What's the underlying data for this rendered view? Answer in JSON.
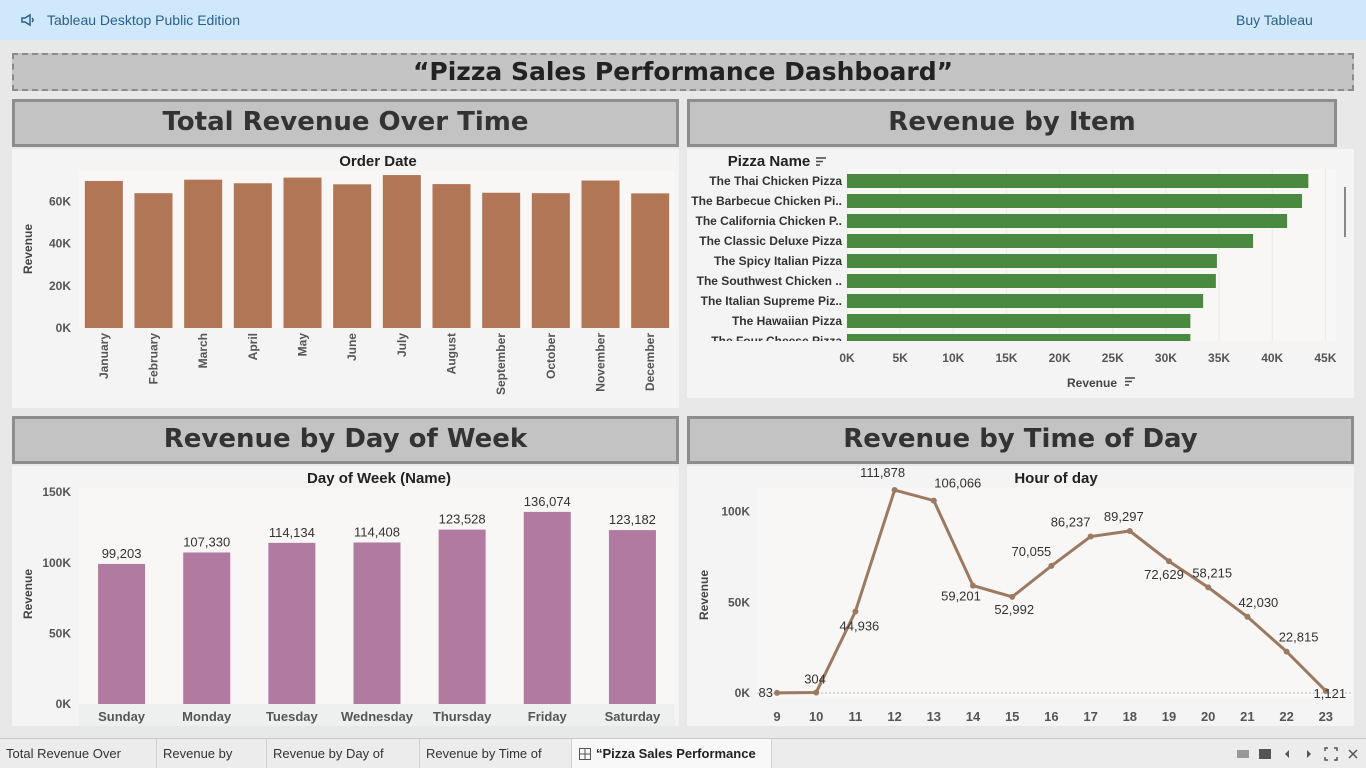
{
  "app": {
    "title": "Tableau Desktop Public Edition",
    "buy_label": "Buy Tableau"
  },
  "dashboard": {
    "title": "“Pizza Sales Performance Dashboard”",
    "panels": {
      "revenue_time": "Total Revenue Over Time",
      "revenue_item": "Revenue by Item",
      "revenue_dow": "Revenue by Day of Week",
      "revenue_tod": "Revenue by Time of Day"
    }
  },
  "tabs": [
    "Total Revenue Over Time",
    "Revenue by Item",
    "Revenue by Day of Week",
    "Revenue by Time of Day",
    "“Pizza Sales Performance D..."
  ],
  "colors": {
    "month_bar": "#b07656",
    "item_bar": "#4a8a40",
    "dow_bar": "#b07aa1",
    "tod_line": "#9c7a62"
  },
  "chart_data": [
    {
      "type": "bar",
      "title": "Order Date",
      "ylabel": "Revenue",
      "categories": [
        "January",
        "February",
        "March",
        "April",
        "May",
        "June",
        "July",
        "August",
        "September",
        "October",
        "November",
        "December"
      ],
      "values": [
        69800,
        64000,
        70400,
        68700,
        71400,
        68200,
        72600,
        68300,
        64200,
        64000,
        70000,
        63900
      ],
      "ylim": [
        0,
        75000
      ],
      "yticks": [
        0,
        20000,
        40000,
        60000
      ],
      "ytick_labels": [
        "0K",
        "20K",
        "40K",
        "60K"
      ]
    },
    {
      "type": "bar",
      "orientation": "horizontal",
      "title": "Pizza Name",
      "xlabel": "Revenue",
      "categories": [
        "The Thai Chicken Pizza",
        "The Barbecue Chicken Pi..",
        "The California Chicken P..",
        "The Classic Deluxe Pizza",
        "The Spicy Italian Pizza",
        "The Southwest Chicken ..",
        "The Italian Supreme Piz..",
        "The Hawaiian Pizza",
        "The Four Cheese Pizza"
      ],
      "values": [
        43400,
        42800,
        41400,
        38200,
        34800,
        34700,
        33500,
        32300,
        32300
      ],
      "xlim": [
        0,
        46000
      ],
      "xticks": [
        0,
        5000,
        10000,
        15000,
        20000,
        25000,
        30000,
        35000,
        40000,
        45000
      ],
      "xtick_labels": [
        "0K",
        "5K",
        "10K",
        "15K",
        "20K",
        "25K",
        "30K",
        "35K",
        "40K",
        "45K"
      ]
    },
    {
      "type": "bar",
      "title": "Day of Week (Name)",
      "ylabel": "Revenue",
      "categories": [
        "Sunday",
        "Monday",
        "Tuesday",
        "Wednesday",
        "Thursday",
        "Friday",
        "Saturday"
      ],
      "values": [
        99203,
        107330,
        114134,
        114408,
        123528,
        136074,
        123182
      ],
      "data_labels": [
        "99,203",
        "107,330",
        "114,134",
        "114,408",
        "123,528",
        "136,074",
        "123,182"
      ],
      "ylim": [
        0,
        153000
      ],
      "yticks": [
        0,
        50000,
        100000,
        150000
      ],
      "ytick_labels": [
        "0K",
        "50K",
        "100K",
        "150K"
      ]
    },
    {
      "type": "line",
      "title": "Hour of day",
      "ylabel": "Revenue",
      "x": [
        9,
        10,
        11,
        12,
        13,
        14,
        15,
        16,
        17,
        18,
        19,
        20,
        21,
        22,
        23
      ],
      "values": [
        83,
        304,
        44936,
        111878,
        106066,
        59201,
        52992,
        70055,
        86237,
        89297,
        72629,
        58215,
        42030,
        22815,
        1121
      ],
      "data_labels": [
        "83",
        "304",
        "44,936",
        "111,878",
        "106,066",
        "59,201",
        "52,992",
        "70,055",
        "86,237",
        "89,297",
        "72,629",
        "58,215",
        "42,030",
        "22,815",
        "1,121"
      ],
      "ylim": [
        0,
        113000
      ],
      "yticks": [
        0,
        50000,
        100000
      ],
      "ytick_labels": [
        "0K",
        "50K",
        "100K"
      ]
    }
  ]
}
